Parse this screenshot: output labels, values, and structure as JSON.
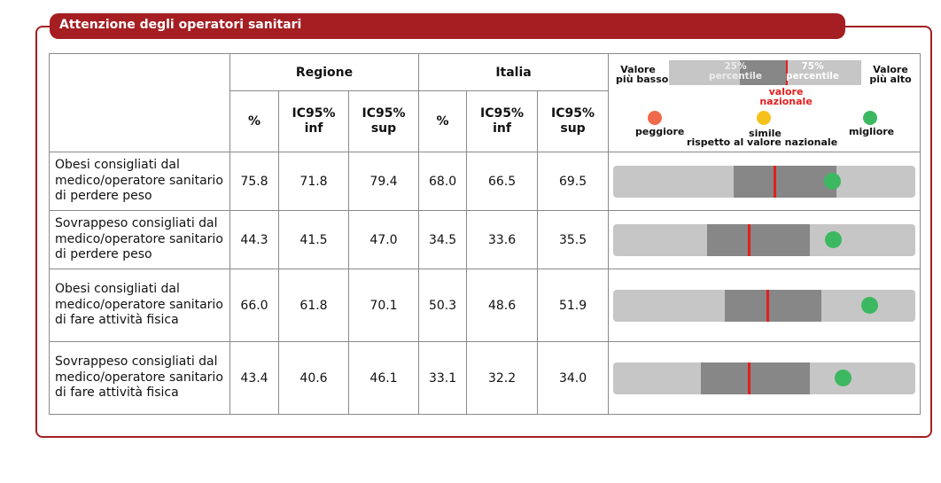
{
  "title": "Attenzione degli operatori sanitari",
  "headers": {
    "regione": "Regione",
    "italia": "Italia",
    "pct": "%",
    "ic_inf_1": "IC95%",
    "ic_inf_2": "inf",
    "ic_sup_1": "IC95%",
    "ic_sup_2": "sup"
  },
  "legend": {
    "low_1": "Valore",
    "low_2": "più basso",
    "high_1": "Valore",
    "high_2": "più alto",
    "p25_1": "25%",
    "p25_2": "percentile",
    "p75_1": "75%",
    "p75_2": "percentile",
    "nat_1": "valore",
    "nat_2": "nazionale",
    "worse": "peggiore",
    "similar": "simile",
    "better": "migliore",
    "caption": "rispetto al valore nazionale",
    "colors": {
      "worse": "#ef6a4a",
      "similar": "#f5c21b",
      "better": "#3cb861"
    }
  },
  "rows": [
    {
      "label": "Obesi consigliati dal medico/operatore sanitario di perdere peso",
      "reg_pct": "75.8",
      "reg_inf": "71.8",
      "reg_sup": "79.4",
      "ita_pct": "68.0",
      "ita_inf": "66.5",
      "ita_sup": "69.5",
      "bar": {
        "p25": 0.4,
        "p75": 0.74,
        "national": 0.535,
        "value": 0.725,
        "status": "better"
      }
    },
    {
      "label": "Sovrappeso consigliati dal medico/operatore sanitario di perdere peso",
      "reg_pct": "44.3",
      "reg_inf": "41.5",
      "reg_sup": "47.0",
      "ita_pct": "34.5",
      "ita_inf": "33.6",
      "ita_sup": "35.5",
      "bar": {
        "p25": 0.31,
        "p75": 0.65,
        "national": 0.45,
        "value": 0.73,
        "status": "better"
      }
    },
    {
      "label": "Obesi consigliati dal medico/operatore sanitario di fare attività fisica",
      "reg_pct": "66.0",
      "reg_inf": "61.8",
      "reg_sup": "70.1",
      "ita_pct": "50.3",
      "ita_inf": "48.6",
      "ita_sup": "51.9",
      "bar": {
        "p25": 0.37,
        "p75": 0.69,
        "national": 0.51,
        "value": 0.85,
        "status": "better"
      }
    },
    {
      "label": "Sovrappeso consigliati dal medico/operatore sanitario di fare attività fisica",
      "reg_pct": "43.4",
      "reg_inf": "40.6",
      "reg_sup": "46.1",
      "ita_pct": "33.1",
      "ita_inf": "32.2",
      "ita_sup": "34.0",
      "bar": {
        "p25": 0.29,
        "p75": 0.65,
        "national": 0.45,
        "value": 0.76,
        "status": "better"
      }
    }
  ]
}
